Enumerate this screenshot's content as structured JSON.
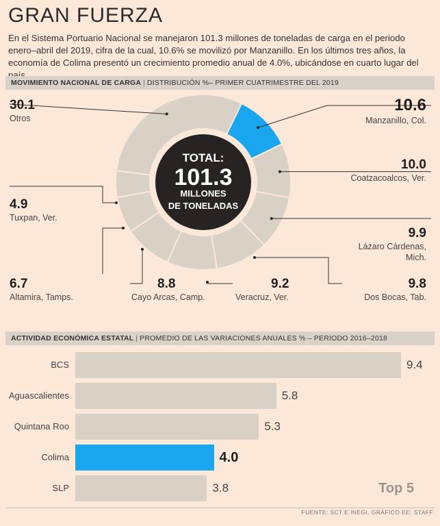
{
  "title": "GRAN FUERZA",
  "intro": "En el Sistema Portuario Nacional se manejaron 101.3 millones de toneladas de carga en el periodo enero–abril del 2019, cifra de la cual, 10.6% se movilizó por Manzanillo. En los últimos tres años, la economía de Colima presentó un crecimiento promedio anual de 4.0%, ubicándose en cuarto lugar del país.",
  "section1": {
    "title": "MOVIMIENTO NACIONAL DE CARGA",
    "subtitle": "DISTRIBUCIÓN %– PRIMER CUATRIMESTRE DEL 2019"
  },
  "section2": {
    "title": "ACTIVIDAD ECONÓMICA ESTATAL",
    "subtitle": "PROMEDIO DE LAS VARIACIONES ANUALES % – PERIODO 2016–2018"
  },
  "center": {
    "line1": "TOTAL:",
    "line2": "101.3",
    "line3": "MILLONES",
    "line4": "DE TONELADAS"
  },
  "top5_label": "Top 5",
  "source": "FUENTE: SCT E INEGI. GRÁFICO EE: STAFF",
  "colors": {
    "highlight": "#1aa6ee",
    "segment": "#d9d0c6",
    "background": "#fbe8d8",
    "center": "#262322"
  },
  "chart_data": [
    {
      "type": "pie",
      "title": "MOVIMIENTO NACIONAL DE CARGA",
      "subtitle": "DISTRIBUCIÓN %– PRIMER CUATRIMESTRE DEL 2019",
      "total": "101.3",
      "slices": [
        {
          "label": "Manzanillo, Col.",
          "value": 10.6,
          "highlight": true
        },
        {
          "label": "Coatzacoalcos, Ver.",
          "value": 10.0
        },
        {
          "label": "Lázaro Cárdenas, Mich.",
          "value": 9.9
        },
        {
          "label": "Dos Bocas, Tab.",
          "value": 9.8
        },
        {
          "label": "Veracruz, Ver.",
          "value": 9.2
        },
        {
          "label": "Cayo Arcas, Camp.",
          "value": 8.8
        },
        {
          "label": "Altamira, Tamps.",
          "value": 6.7
        },
        {
          "label": "Tuxpan, Ver.",
          "value": 4.9
        },
        {
          "label": "Otros",
          "value": 30.1
        }
      ]
    },
    {
      "type": "bar",
      "title": "ACTIVIDAD ECONÓMICA ESTATAL",
      "subtitle": "PROMEDIO DE LAS VARIACIONES ANUALES % – PERIODO 2016–2018",
      "categories": [
        "BCS",
        "Aguascalientes",
        "Quintana Roo",
        "Colima",
        "SLP"
      ],
      "values": [
        9.4,
        5.8,
        5.3,
        4.0,
        3.8
      ],
      "highlight": "Colima",
      "orientation": "horizontal"
    }
  ]
}
